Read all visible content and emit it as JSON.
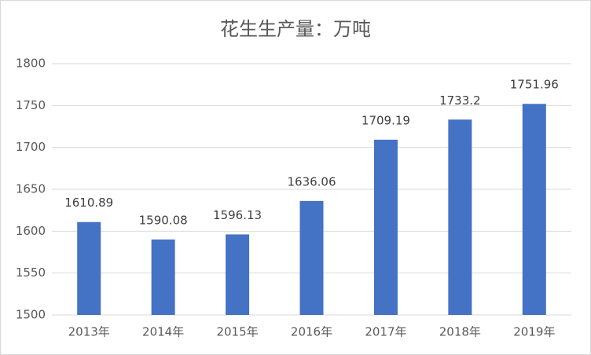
{
  "chart_data": {
    "type": "bar",
    "title": "花生生产量：万吨",
    "categories": [
      "2013年",
      "2014年",
      "2015年",
      "2016年",
      "2017年",
      "2018年",
      "2019年"
    ],
    "values": [
      1610.89,
      1590.08,
      1596.13,
      1636.06,
      1709.19,
      1733.2,
      1751.96
    ],
    "color": "#4472c4",
    "ylim": [
      1500,
      1800
    ],
    "yticks": [
      1500,
      1550,
      1600,
      1650,
      1700,
      1750,
      1800
    ],
    "grid": true
  }
}
